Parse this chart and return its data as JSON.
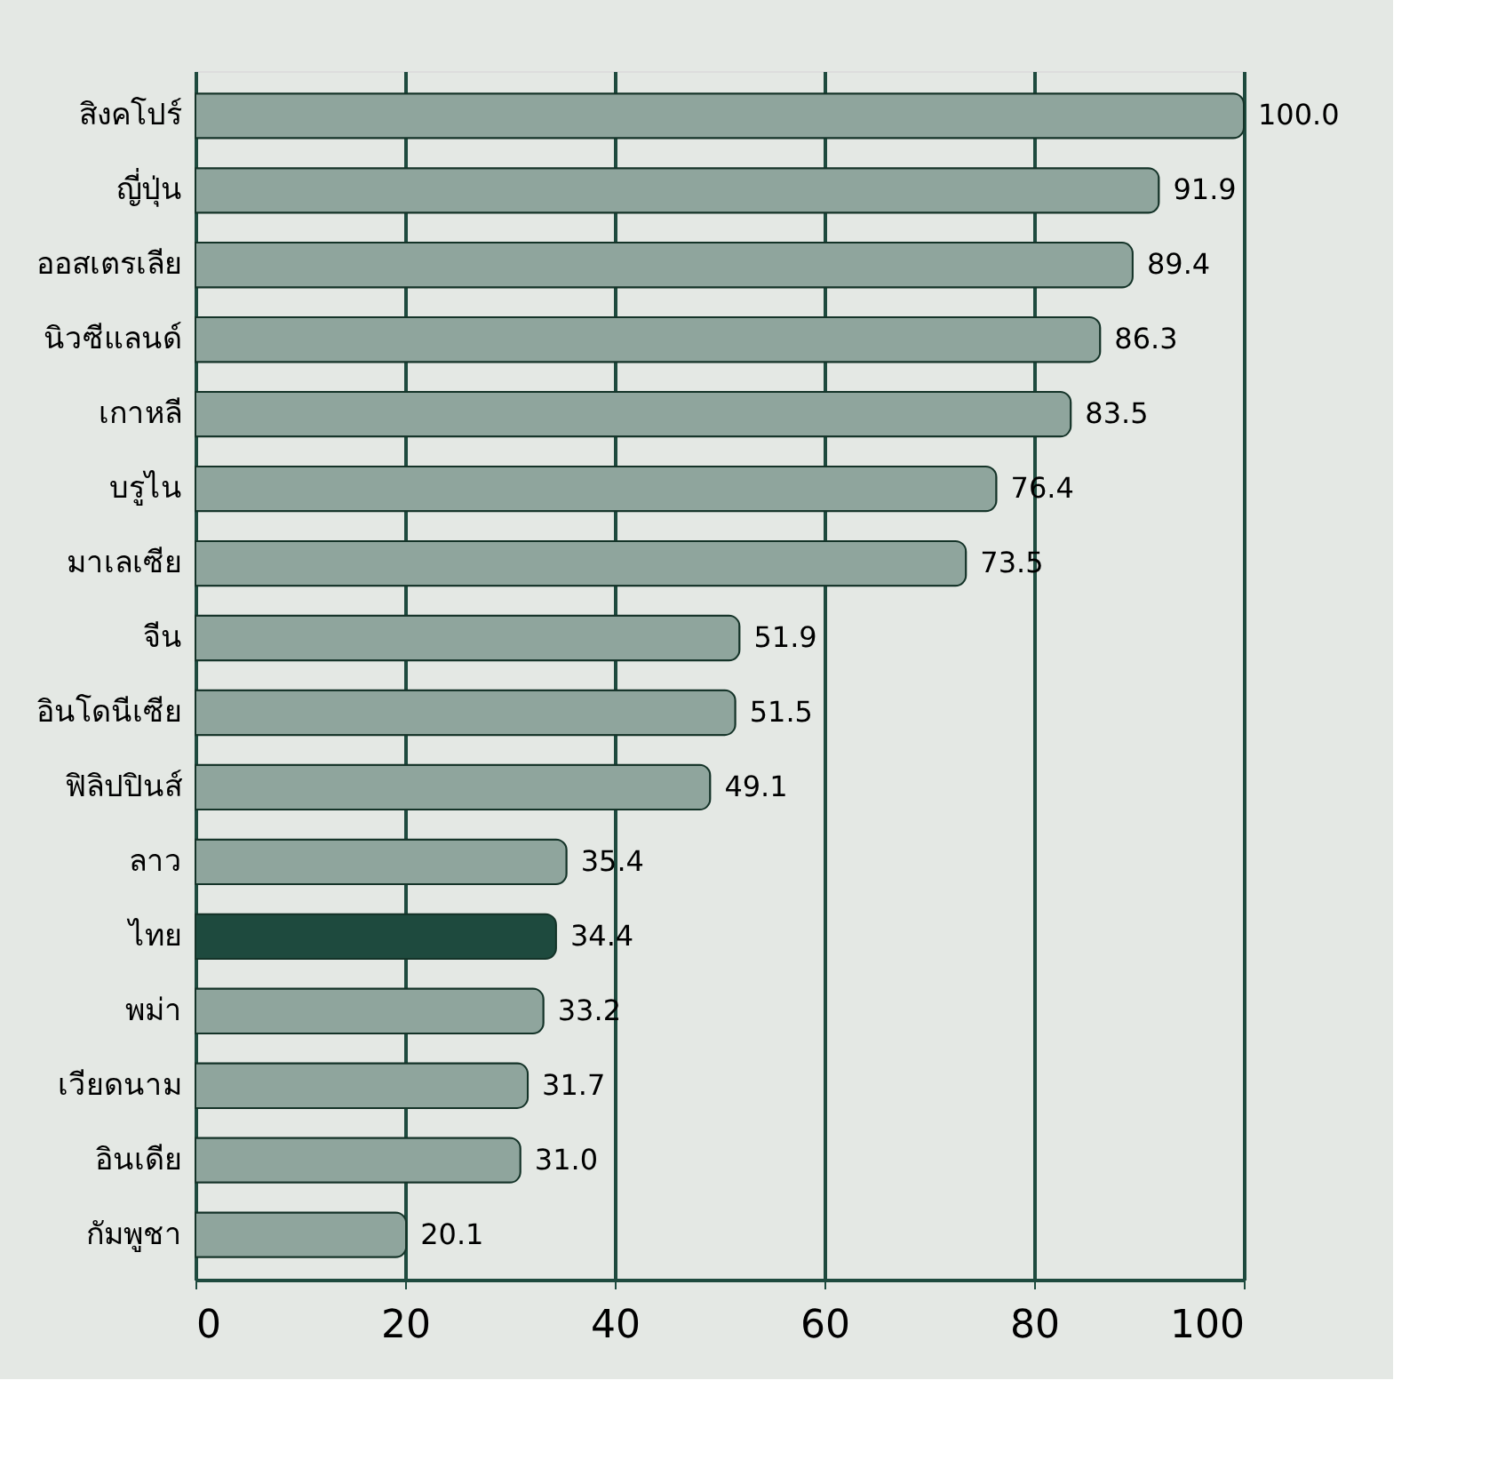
{
  "chart_data": {
    "type": "bar",
    "orientation": "horizontal",
    "categories": [
      "สิงคโปร์",
      "ญี่ปุ่น",
      "ออสเตรเลีย",
      "นิวซีแลนด์",
      "เกาหลี",
      "บรูไน",
      "มาเลเซีย",
      "จีน",
      "อินโดนีเซีย",
      "ฟิลิปปินส์",
      "ลาว",
      "ไทย",
      "พม่า",
      "เวียดนาม",
      "อินเดีย",
      "กัมพูชา"
    ],
    "values": [
      100.0,
      91.9,
      89.4,
      86.3,
      83.5,
      76.4,
      73.5,
      51.9,
      51.5,
      49.1,
      35.4,
      34.4,
      33.2,
      31.7,
      31.0,
      20.1
    ],
    "colors": [
      "#8fa59d",
      "#8fa59d",
      "#8fa59d",
      "#8fa59d",
      "#8fa59d",
      "#8fa59d",
      "#8fa59d",
      "#8fa59d",
      "#8fa59d",
      "#8fa59d",
      "#8fa59d",
      "#1e4a3e",
      "#8fa59d",
      "#8fa59d",
      "#8fa59d",
      "#8fa59d"
    ],
    "value_labels": [
      "100.0",
      "91.9",
      "89.4",
      "86.3",
      "83.5",
      "76.4",
      "73.5",
      "51.9",
      "51.5",
      "49.1",
      "35.4",
      "34.4",
      "33.2",
      "31.7",
      "31.0",
      "20.1"
    ],
    "xlim": [
      0,
      100
    ],
    "xticks": [
      0,
      20,
      40,
      60,
      80,
      100
    ],
    "grid": "x"
  }
}
